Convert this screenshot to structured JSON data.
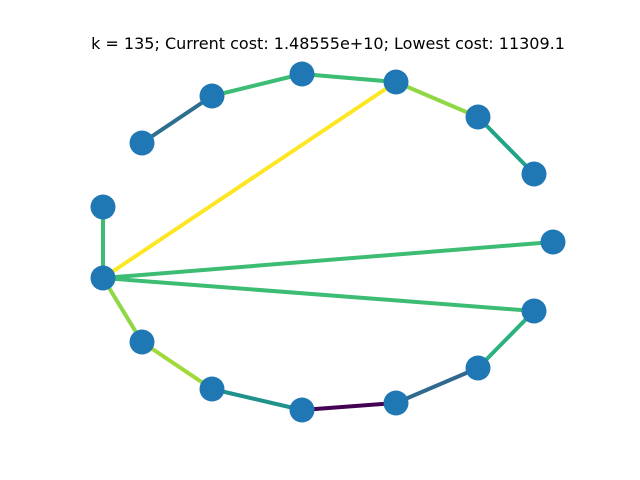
{
  "title": "k = 135; Current cost: 1.48555e+10; Lowest cost: 11309.1",
  "colors": {
    "node": "#1f77b4",
    "background": "#ffffff"
  },
  "graph": {
    "nodes": [
      {
        "id": "n0"
      },
      {
        "id": "n1"
      },
      {
        "id": "n2"
      },
      {
        "id": "n3"
      },
      {
        "id": "n4"
      },
      {
        "id": "n5"
      },
      {
        "id": "n6"
      },
      {
        "id": "n7"
      },
      {
        "id": "n8"
      },
      {
        "id": "n9"
      },
      {
        "id": "n10"
      },
      {
        "id": "n11"
      },
      {
        "id": "n12"
      },
      {
        "id": "n13"
      },
      {
        "id": "n14"
      }
    ],
    "edges": [
      {
        "from": "n0",
        "to": "n1",
        "color": "#2f6f8e"
      },
      {
        "from": "n1",
        "to": "n2",
        "color": "#3dbc74"
      },
      {
        "from": "n2",
        "to": "n3",
        "color": "#3dbc74"
      },
      {
        "from": "n3",
        "to": "n4",
        "color": "#8fd744"
      },
      {
        "from": "n4",
        "to": "n5",
        "color": "#20a386"
      },
      {
        "from": "n3",
        "to": "n8",
        "color": "#fde725"
      },
      {
        "from": "n7",
        "to": "n8",
        "color": "#3dbc74"
      },
      {
        "from": "n8",
        "to": "n6",
        "color": "#3dbc74"
      },
      {
        "from": "n8",
        "to": "n9",
        "color": "#8fd744"
      },
      {
        "from": "n9",
        "to": "n10",
        "color": "#a0da39"
      },
      {
        "from": "n10",
        "to": "n11",
        "color": "#21918c"
      },
      {
        "from": "n11",
        "to": "n12",
        "color": "#440154"
      },
      {
        "from": "n12",
        "to": "n13",
        "color": "#31688e"
      },
      {
        "from": "n13",
        "to": "n6",
        "color": "#2db27d"
      }
    ]
  }
}
